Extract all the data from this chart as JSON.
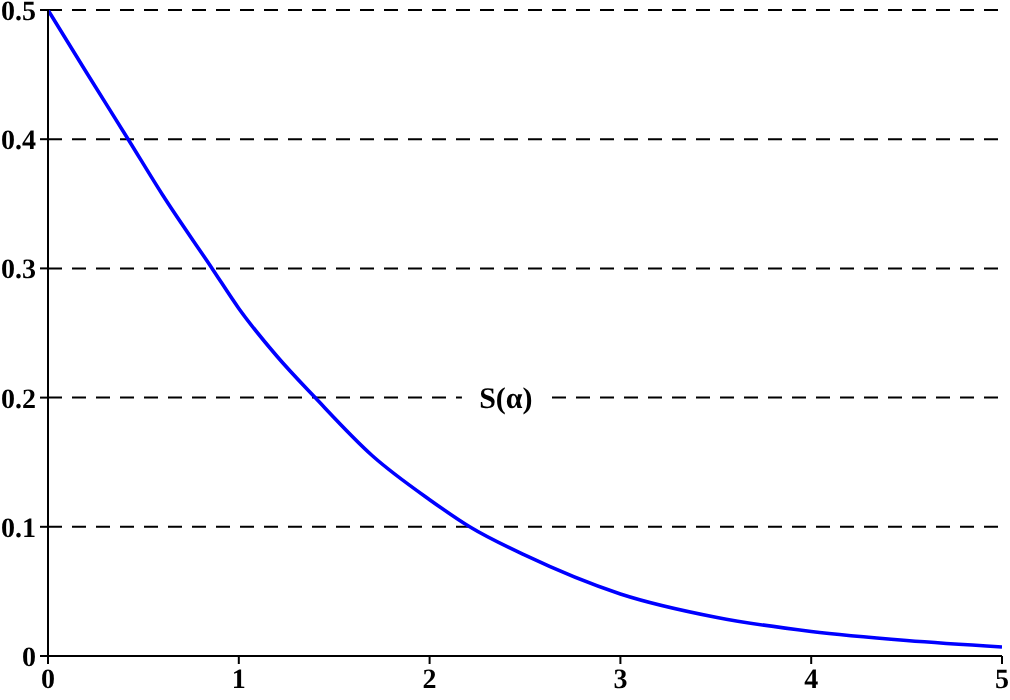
{
  "chart_data": {
    "type": "line",
    "x": [
      0,
      0.2,
      0.42,
      0.6,
      0.86,
      1,
      1.2,
      1.4,
      1.7,
      2,
      2.21,
      2.5,
      3,
      3.5,
      4,
      4.5,
      5
    ],
    "series": [
      {
        "color": "#0000ff",
        "values": [
          0.5,
          0.452,
          0.4,
          0.357,
          0.3,
          0.269,
          0.232,
          0.2,
          0.155,
          0.121,
          0.1,
          0.078,
          0.048,
          0.03,
          0.019,
          0.012,
          0.007
        ]
      }
    ],
    "xlim": [
      0,
      5
    ],
    "xticks": [
      0,
      1,
      2,
      3,
      4,
      5
    ],
    "ylim": [
      0,
      0.5
    ],
    "yticks": [
      0,
      0.1,
      0.2,
      0.3,
      0.4,
      0.5
    ],
    "grid": "y",
    "marker": "none",
    "line_style": "solid",
    "annotations": [
      {
        "text": "S(α)",
        "x": 2.4,
        "y": 0.2
      }
    ]
  }
}
